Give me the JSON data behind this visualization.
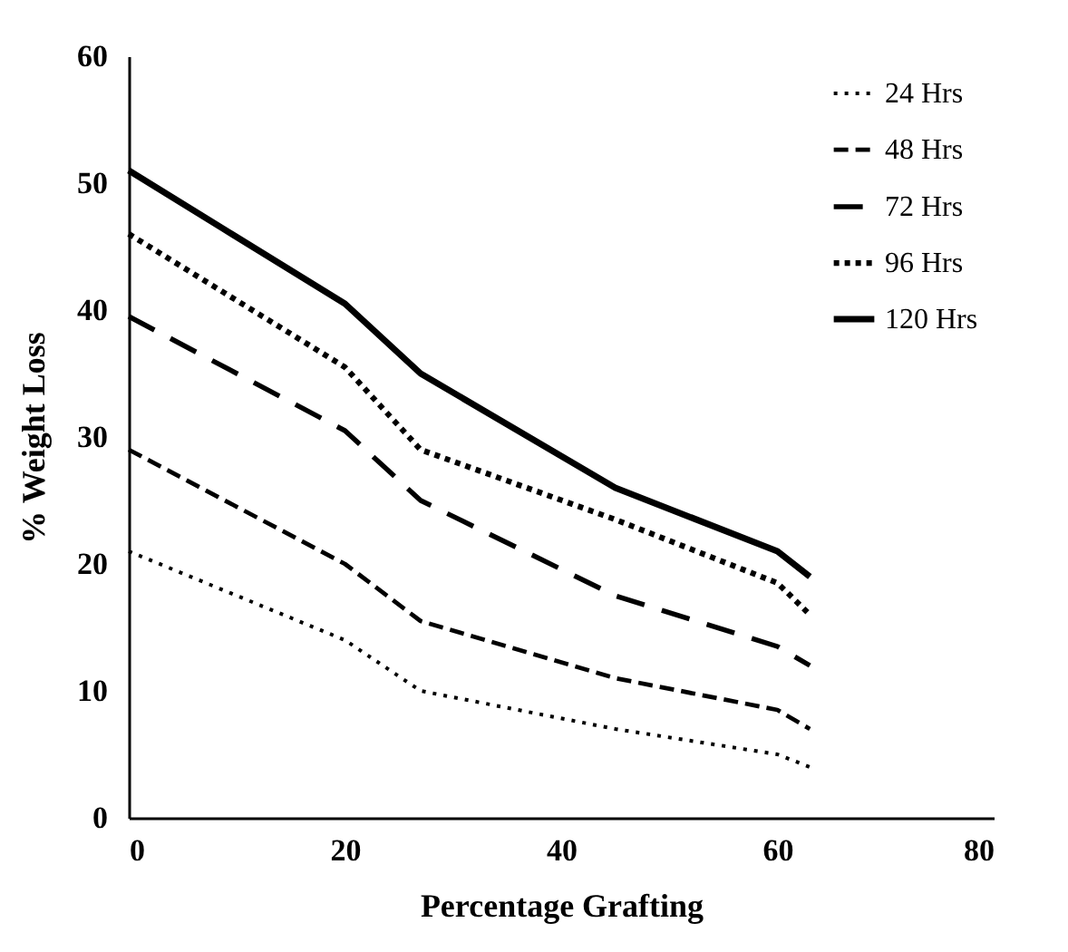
{
  "chart_data": {
    "type": "line",
    "xlabel": "Percentage Grafting",
    "ylabel": "% Weight Loss",
    "x": [
      0,
      20,
      27,
      45,
      60,
      63
    ],
    "series": [
      {
        "name": "24 Hrs",
        "color": "#000000",
        "line_style": "dotted",
        "values": [
          21,
          14,
          10,
          7,
          5,
          4
        ]
      },
      {
        "name": "48 Hrs",
        "color": "#000000",
        "line_style": "dashed",
        "values": [
          29,
          20,
          15.5,
          11,
          8.5,
          7
        ]
      },
      {
        "name": "72 Hrs",
        "color": "#000000",
        "line_style": "dashed",
        "values": [
          39.5,
          30.5,
          25,
          17.5,
          13.5,
          12
        ]
      },
      {
        "name": "96 Hrs",
        "color": "#000000",
        "line_style": "dotted",
        "values": [
          46,
          35.5,
          29,
          23.5,
          18.5,
          16
        ]
      },
      {
        "name": "120 Hrs",
        "color": "#000000",
        "line_style": "solid",
        "values": [
          51,
          40.5,
          35,
          26,
          21,
          19
        ]
      }
    ],
    "xlim": [
      0,
      80
    ],
    "xticks": [
      0,
      20,
      40,
      60,
      80
    ],
    "ylim": [
      0,
      60
    ],
    "yticks": [
      0,
      10,
      20,
      30,
      40,
      50,
      60
    ],
    "grid": false,
    "legend": "top right",
    "marker": "none"
  }
}
